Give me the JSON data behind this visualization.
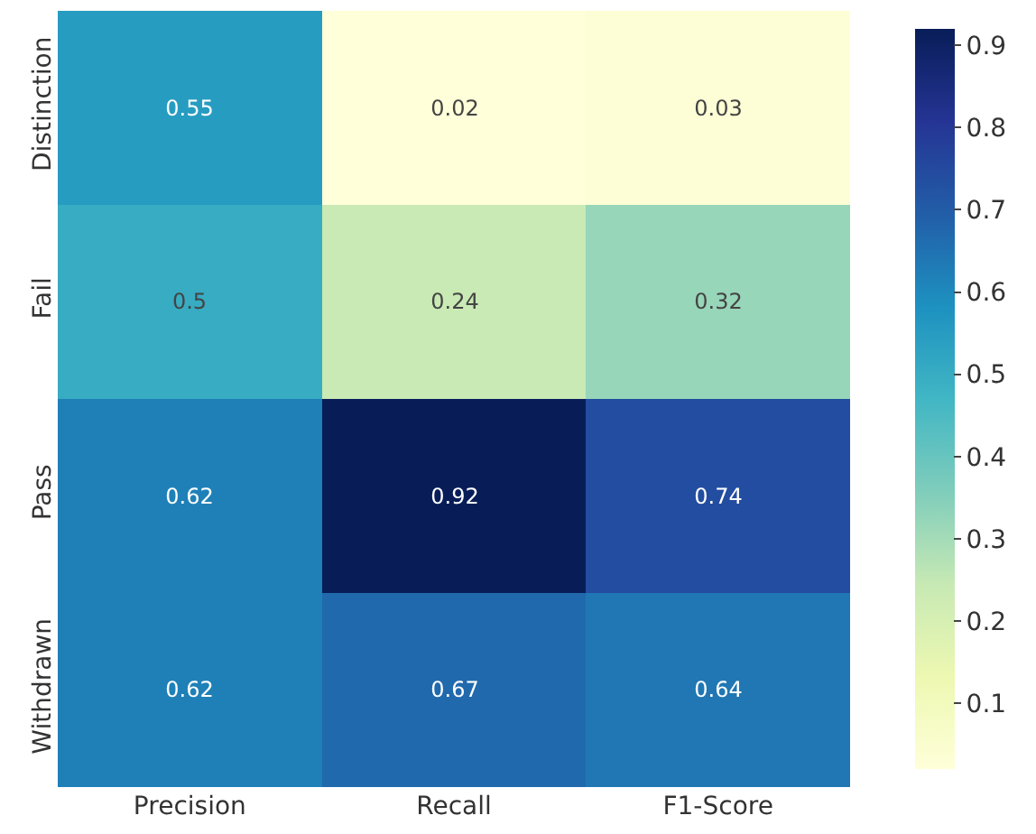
{
  "chart_data": {
    "type": "heatmap",
    "categories": [
      "Precision",
      "Recall",
      "F1-Score"
    ],
    "y_categories": [
      "Distinction",
      "Fail",
      "Pass",
      "Withdrawn"
    ],
    "cells": [
      [
        0.55,
        0.02,
        0.03
      ],
      [
        0.5,
        0.24,
        0.32
      ],
      [
        0.62,
        0.92,
        0.74
      ],
      [
        0.62,
        0.67,
        0.64
      ]
    ],
    "data_labels": true,
    "clim": [
      0.02,
      0.92
    ],
    "cticks": [
      0.1,
      0.2,
      0.3,
      0.4,
      0.5,
      0.6,
      0.7,
      0.8,
      0.9
    ]
  }
}
